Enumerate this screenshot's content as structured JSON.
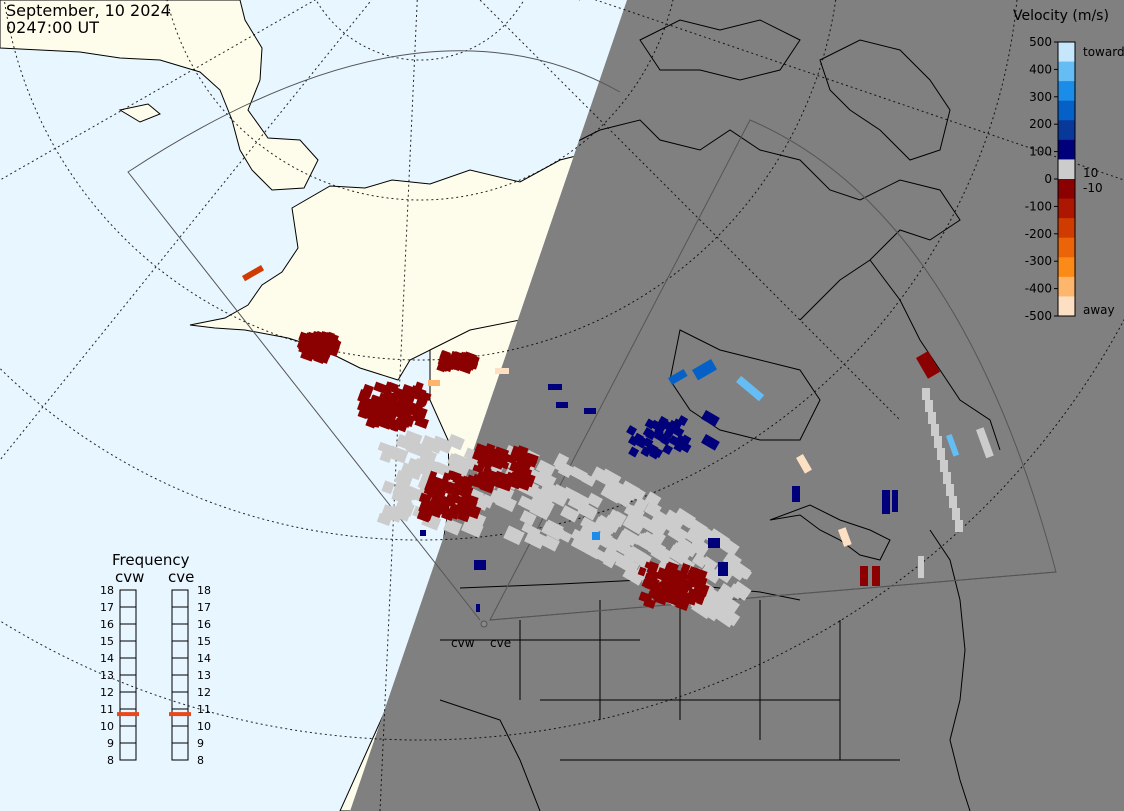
{
  "header": {
    "date": "September, 10 2024",
    "time": "0247:00 UT"
  },
  "velocity_legend": {
    "title": "Velocity (m/s)",
    "ticks": [
      "500",
      "400",
      "300",
      "200",
      "100",
      "0",
      "-100",
      "-200",
      "-300",
      "-400",
      "-500"
    ],
    "toward_label": "toward",
    "away_label": "away",
    "small_pos": "10",
    "small_neg": "-10",
    "colors": [
      "#fde0c3",
      "#fdb66b",
      "#fb8a17",
      "#ec6408",
      "#cf3b00",
      "#ad1600",
      "#8b0000",
      "#cccccc",
      "#00007a",
      "#08389a",
      "#0560c8",
      "#1b8ce8",
      "#65bdf4",
      "#c6e6fb"
    ]
  },
  "frequency": {
    "title": "Frequency",
    "radars": [
      "cvw",
      "cve"
    ],
    "levels": [
      "18",
      "17",
      "16",
      "15",
      "14",
      "13",
      "12",
      "11",
      "10",
      "9",
      "8"
    ],
    "cvw_mhz": 10.7,
    "cve_mhz": 10.7,
    "marker_color": "#e8491b"
  },
  "radars": {
    "cvw_label": "cvw",
    "cve_label": "cve"
  },
  "colors": {
    "ocean_day": "#e8f6ff",
    "land_day": "#fefdec",
    "night": "#808080",
    "ground_scatter": "#cccccc"
  }
}
